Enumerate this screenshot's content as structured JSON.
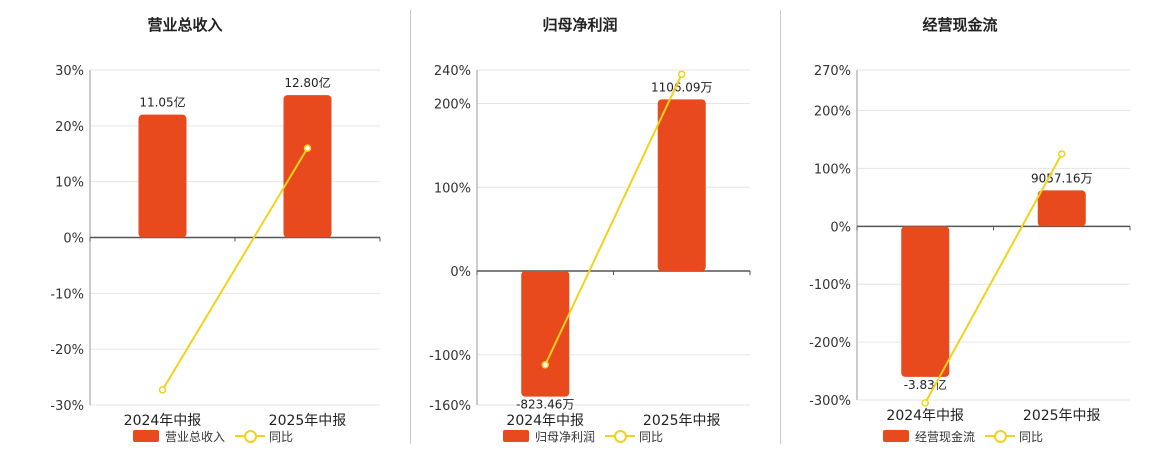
{
  "chart_data": [
    {
      "type": "bar",
      "title": "营业总收入",
      "categories": [
        "2024年中报",
        "2025年中报"
      ],
      "series": [
        {
          "name": "营业总收入",
          "type": "bar",
          "values": [
            22,
            25.5
          ],
          "labels": [
            "11.05亿",
            "12.80亿"
          ]
        },
        {
          "name": "同比",
          "type": "line",
          "values": [
            -27.3,
            16
          ]
        }
      ],
      "ylim": [
        -30,
        30
      ],
      "yticks": [
        -30,
        -20,
        -10,
        0,
        10,
        20,
        30
      ],
      "ytick_labels": [
        "-30%",
        "-20%",
        "-10%",
        "0%",
        "10%",
        "20%",
        "30%"
      ],
      "grid": true,
      "legend": "bottom"
    },
    {
      "type": "bar",
      "title": "归母净利润",
      "categories": [
        "2024年中报",
        "2025年中报"
      ],
      "series": [
        {
          "name": "归母净利润",
          "type": "bar",
          "values": [
            -150,
            205
          ],
          "labels": [
            "-823.46万",
            "1106.09万"
          ]
        },
        {
          "name": "同比",
          "type": "line",
          "values": [
            -112,
            235
          ]
        }
      ],
      "ylim": [
        -160,
        240
      ],
      "yticks": [
        -160,
        -100,
        0,
        100,
        200,
        240
      ],
      "ytick_labels": [
        "-160%",
        "-100%",
        "0%",
        "100%",
        "200%",
        "240%"
      ],
      "grid": true,
      "legend": "bottom"
    },
    {
      "type": "bar",
      "title": "经营现金流",
      "categories": [
        "2024年中报",
        "2025年中报"
      ],
      "series": [
        {
          "name": "经营现金流",
          "type": "bar",
          "values": [
            -260,
            62
          ],
          "labels": [
            "-3.83亿",
            "9057.16万"
          ]
        },
        {
          "name": "同比",
          "type": "line",
          "values": [
            -305,
            125
          ]
        }
      ],
      "ylim": [
        -300,
        270
      ],
      "yticks": [
        -300,
        -200,
        -100,
        0,
        100,
        200,
        270
      ],
      "ytick_labels": [
        "-300%",
        "-200%",
        "-100%",
        "0%",
        "100%",
        "200%",
        "270%"
      ],
      "grid": true,
      "legend": "bottom"
    }
  ],
  "colors": {
    "bar": "#e8491d",
    "line": "#f2d21b",
    "grid": "#e6e6e6",
    "axis": "#555555"
  }
}
